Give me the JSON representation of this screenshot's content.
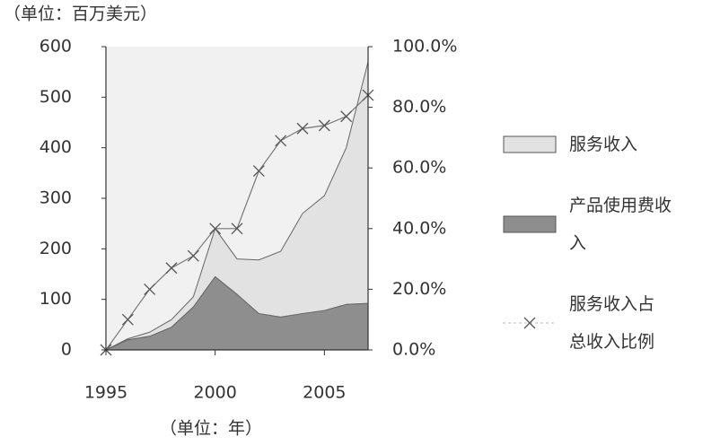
{
  "chart_data": {
    "type": "stacked_area_line",
    "y_label": "（单位：百万美元）",
    "x_label": "（单位：年）",
    "x": [
      1995,
      1996,
      1997,
      1998,
      1999,
      2000,
      2001,
      2002,
      2003,
      2004,
      2005,
      2006,
      2007
    ],
    "xlim": [
      1995,
      2007
    ],
    "xticks": [
      1995,
      2000,
      2005
    ],
    "ylim": [
      0,
      600
    ],
    "yticks": [
      0,
      100,
      200,
      300,
      400,
      500,
      600
    ],
    "y2lim": [
      0,
      100
    ],
    "y2ticks": [
      {
        "value": 0,
        "label": "0.0%"
      },
      {
        "value": 20,
        "label": "20.0%"
      },
      {
        "value": 40,
        "label": "40.0%"
      },
      {
        "value": 60,
        "label": "60.0%"
      },
      {
        "value": 80,
        "label": "80.0%"
      },
      {
        "value": 100,
        "label": "100.0%"
      }
    ],
    "series": [
      {
        "name": "产品使用费收入",
        "color": "#8e8e8e",
        "values": [
          0,
          20,
          27,
          45,
          85,
          145,
          110,
          72,
          65,
          72,
          78,
          90,
          92
        ]
      },
      {
        "name": "服务收入",
        "color": "#e2e2e2",
        "values": [
          0,
          2,
          8,
          15,
          20,
          95,
          70,
          106,
          130,
          198,
          227,
          310,
          478
        ]
      },
      {
        "name": "服务收入占总收入比例",
        "color": "#777777",
        "axis": "y2",
        "values": [
          0,
          10,
          20,
          27,
          31,
          40,
          40,
          59,
          69,
          73,
          74,
          77,
          84
        ]
      }
    ]
  }
}
